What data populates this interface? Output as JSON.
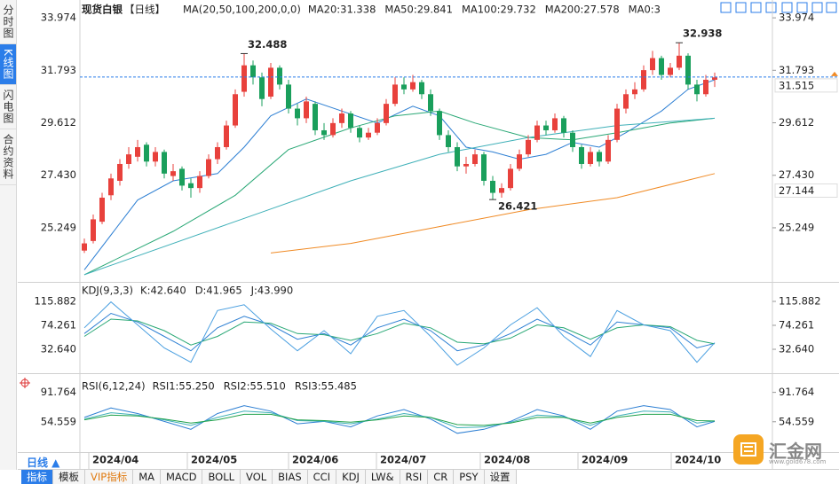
{
  "sidebar": {
    "tabs": [
      "分时图",
      "K线图",
      "闪电图",
      "合约资料"
    ],
    "active": 1
  },
  "chart_data": [
    {
      "type": "candlestick",
      "title": "现货白银",
      "period": "【日线】",
      "ma_label": "MA(20,50,100,200,0,0)",
      "xlim": [
        -0.5,
        77.5
      ],
      "ylim": [
        23.0,
        34.42
      ],
      "yticks": [
        33.974,
        31.793,
        29.612,
        {
          "value": 27.43,
          "label": "27.430"
        },
        25.249
      ],
      "up_color": "#e8413c",
      "down_color": "#1a9f5c",
      "candles": [
        [
          24.3,
          24.8,
          24.2,
          24.6
        ],
        [
          24.7,
          25.8,
          24.6,
          25.6
        ],
        [
          25.5,
          26.7,
          25.4,
          26.5
        ],
        [
          26.6,
          27.5,
          26.4,
          27.3
        ],
        [
          27.2,
          28.1,
          27.0,
          27.9
        ],
        [
          27.9,
          28.6,
          27.7,
          28.3
        ],
        [
          28.2,
          28.9,
          28.0,
          28.6
        ],
        [
          28.7,
          28.8,
          27.8,
          28.0
        ],
        [
          28.0,
          28.6,
          27.8,
          28.4
        ],
        [
          28.4,
          28.5,
          27.3,
          27.5
        ],
        [
          27.4,
          27.9,
          27.2,
          27.6
        ],
        [
          27.7,
          27.8,
          26.8,
          27.0
        ],
        [
          27.1,
          27.3,
          26.5,
          26.9
        ],
        [
          26.9,
          27.6,
          26.7,
          27.4
        ],
        [
          27.4,
          28.3,
          27.3,
          28.1
        ],
        [
          28.1,
          28.8,
          27.9,
          28.6
        ],
        [
          28.6,
          29.7,
          28.5,
          29.5
        ],
        [
          29.5,
          31.0,
          29.4,
          30.8
        ],
        [
          30.9,
          32.488,
          30.7,
          32.0
        ],
        [
          32.0,
          32.2,
          31.2,
          31.5
        ],
        [
          31.5,
          31.7,
          30.3,
          30.6
        ],
        [
          30.7,
          32.1,
          30.6,
          31.9
        ],
        [
          31.9,
          32.0,
          31.0,
          31.2
        ],
        [
          31.2,
          31.4,
          30.0,
          30.2
        ],
        [
          30.2,
          30.4,
          29.5,
          29.8
        ],
        [
          29.8,
          30.7,
          29.6,
          30.5
        ],
        [
          30.4,
          30.5,
          29.1,
          29.3
        ],
        [
          29.3,
          29.6,
          28.9,
          29.1
        ],
        [
          29.1,
          29.8,
          29.0,
          29.6
        ],
        [
          29.6,
          30.2,
          29.4,
          30.0
        ],
        [
          30.0,
          30.1,
          29.2,
          29.4
        ],
        [
          29.4,
          29.5,
          28.8,
          29.0
        ],
        [
          29.0,
          29.4,
          28.9,
          29.2
        ],
        [
          29.2,
          29.8,
          29.1,
          29.6
        ],
        [
          29.6,
          30.6,
          29.5,
          30.4
        ],
        [
          30.4,
          31.5,
          30.3,
          31.2
        ],
        [
          31.2,
          31.5,
          30.8,
          31.0
        ],
        [
          31.0,
          31.6,
          30.9,
          31.3
        ],
        [
          31.3,
          31.4,
          30.6,
          30.8
        ],
        [
          30.8,
          31.0,
          29.9,
          30.1
        ],
        [
          30.1,
          30.2,
          28.9,
          29.1
        ],
        [
          29.1,
          29.3,
          28.4,
          28.6
        ],
        [
          28.6,
          28.8,
          27.6,
          27.8
        ],
        [
          27.8,
          28.2,
          27.5,
          27.9
        ],
        [
          27.9,
          28.5,
          27.8,
          28.3
        ],
        [
          28.3,
          28.4,
          27.0,
          27.2
        ],
        [
          27.2,
          27.4,
          26.421,
          26.7
        ],
        [
          26.7,
          27.1,
          26.5,
          26.9
        ],
        [
          26.9,
          27.9,
          26.8,
          27.7
        ],
        [
          27.7,
          28.5,
          27.6,
          28.3
        ],
        [
          28.3,
          29.1,
          28.2,
          28.9
        ],
        [
          28.9,
          29.7,
          28.8,
          29.5
        ],
        [
          29.5,
          29.7,
          29.1,
          29.3
        ],
        [
          29.3,
          30.0,
          29.2,
          29.8
        ],
        [
          29.8,
          29.9,
          29.0,
          29.2
        ],
        [
          29.2,
          29.3,
          28.4,
          28.6
        ],
        [
          28.6,
          28.7,
          27.7,
          27.9
        ],
        [
          27.9,
          28.6,
          27.8,
          28.4
        ],
        [
          28.4,
          28.5,
          27.8,
          28.0
        ],
        [
          28.0,
          29.1,
          27.9,
          28.9
        ],
        [
          28.9,
          30.4,
          28.8,
          30.2
        ],
        [
          30.2,
          31.0,
          30.0,
          30.8
        ],
        [
          30.8,
          31.3,
          30.6,
          31.0
        ],
        [
          31.0,
          32.0,
          30.9,
          31.8
        ],
        [
          31.8,
          32.6,
          31.6,
          32.3
        ],
        [
          32.3,
          32.4,
          31.4,
          31.6
        ],
        [
          31.6,
          32.1,
          31.5,
          31.9
        ],
        [
          31.9,
          32.938,
          31.8,
          32.4
        ],
        [
          32.4,
          32.5,
          31.0,
          31.2
        ],
        [
          31.2,
          31.4,
          30.5,
          30.8
        ],
        [
          30.8,
          31.6,
          30.7,
          31.4
        ],
        [
          31.4,
          31.7,
          31.1,
          31.5
        ]
      ],
      "series": [
        {
          "name": "MA20:31.338",
          "color": "#2d7fd3",
          "x": [
            0,
            6,
            10,
            15,
            18,
            21,
            25,
            29,
            33,
            37,
            40,
            43,
            46,
            49,
            52,
            55,
            58,
            61,
            65,
            68,
            71
          ],
          "values": [
            23.5,
            26.4,
            27.2,
            27.5,
            28.6,
            29.9,
            30.6,
            30.1,
            29.6,
            30.3,
            29.9,
            28.6,
            28.4,
            28.1,
            28.3,
            28.8,
            28.6,
            29.2,
            30.1,
            31.0,
            31.4
          ]
        },
        {
          "name": "MA50:29.841",
          "color": "#2aa876",
          "x": [
            0,
            10,
            17,
            23,
            30,
            35,
            40,
            44,
            50,
            55,
            60,
            66,
            71
          ],
          "values": [
            23.3,
            25.1,
            26.6,
            28.5,
            29.4,
            29.9,
            30.1,
            29.6,
            29.0,
            28.9,
            29.2,
            29.6,
            29.8
          ]
        },
        {
          "name": "MA100:29.732",
          "color": "#3fb0b8",
          "x": [
            0,
            20,
            30,
            40,
            50,
            60,
            71
          ],
          "values": [
            23.3,
            25.9,
            27.2,
            28.3,
            29.0,
            29.5,
            29.8
          ]
        },
        {
          "name": "MA200:27.578",
          "color": "#f08a24",
          "x": [
            21,
            30,
            40,
            50,
            60,
            71
          ],
          "values": [
            24.2,
            24.6,
            25.3,
            26.0,
            26.5,
            27.5
          ]
        }
      ],
      "legend_extra": {
        "name": "MA0:3",
        "color": "#e07ad8"
      },
      "annotations": [
        {
          "index": 18,
          "value": 32.488,
          "color": "#e8413c"
        },
        {
          "index": 67,
          "value": 32.938,
          "color": "#e8413c"
        },
        {
          "index": 46,
          "value": 26.421,
          "color": "#2aa876"
        }
      ],
      "price_tags": [
        {
          "value": 31.515,
          "color": "#2b7de9",
          "dashed": true
        },
        {
          "value": 27.144,
          "color": "#f08a24",
          "dashed": false
        }
      ]
    },
    {
      "type": "line",
      "title": "KDJ(9,3,3)",
      "xlim": [
        -0.5,
        77.5
      ],
      "ylim": [
        -7.4,
        143.6
      ],
      "yticks": [
        115.882,
        74.261,
        {
          "value": 32.64,
          "label": "32.640"
        }
      ],
      "x": [
        0,
        3,
        6,
        9,
        12,
        15,
        18,
        21,
        24,
        27,
        30,
        33,
        36,
        39,
        42,
        45,
        48,
        51,
        54,
        57,
        60,
        63,
        66,
        69,
        71
      ],
      "series": [
        {
          "name": "K:42.640",
          "color": "#2d7fd3",
          "values": [
            60,
            95,
            80,
            55,
            30,
            70,
            90,
            75,
            50,
            60,
            40,
            70,
            85,
            65,
            30,
            40,
            60,
            85,
            65,
            40,
            80,
            75,
            70,
            35,
            43
          ]
        },
        {
          "name": "D:41.965",
          "color": "#2aa876",
          "values": [
            55,
            85,
            82,
            65,
            40,
            55,
            80,
            78,
            60,
            58,
            48,
            60,
            78,
            70,
            45,
            42,
            52,
            75,
            70,
            50,
            70,
            75,
            72,
            48,
            42
          ]
        },
        {
          "name": "J:43.990",
          "color": "#4a9fe0",
          "values": [
            70,
            115,
            75,
            35,
            10,
            100,
            110,
            68,
            30,
            65,
            25,
            90,
            100,
            55,
            5,
            35,
            75,
            105,
            55,
            20,
            100,
            75,
            65,
            10,
            44
          ]
        }
      ]
    },
    {
      "type": "line",
      "title": "RSI(6,12,24)",
      "xlim": [
        -0.5,
        77.5
      ],
      "ylim": [
        16.2,
        111.5
      ],
      "yticks": [
        91.764,
        54.559
      ],
      "x": [
        0,
        3,
        6,
        9,
        12,
        15,
        18,
        21,
        24,
        27,
        30,
        33,
        36,
        39,
        42,
        45,
        48,
        51,
        54,
        57,
        60,
        63,
        66,
        69,
        71
      ],
      "series": [
        {
          "name": "RSI1:55.250",
          "color": "#2d7fd3",
          "values": [
            60,
            72,
            65,
            55,
            45,
            65,
            75,
            68,
            52,
            55,
            48,
            62,
            70,
            58,
            40,
            45,
            55,
            70,
            62,
            45,
            68,
            75,
            70,
            48,
            55
          ]
        },
        {
          "name": "RSI2:55.510",
          "color": "#3fb0b8",
          "values": [
            58,
            66,
            63,
            57,
            50,
            60,
            68,
            66,
            56,
            55,
            52,
            58,
            65,
            60,
            47,
            48,
            54,
            63,
            61,
            50,
            62,
            68,
            67,
            53,
            55.5
          ]
        },
        {
          "name": "RSI3:55.485",
          "color": "#1fa14a",
          "values": [
            57,
            63,
            62,
            58,
            53,
            57,
            64,
            64,
            57,
            56,
            54,
            57,
            62,
            60,
            51,
            50,
            53,
            60,
            60,
            53,
            60,
            64,
            64,
            56,
            55.5
          ]
        }
      ],
      "xticks": [
        {
          "value": 0.5,
          "label": "2024/04"
        },
        {
          "value": 11.6,
          "label": "2024/05"
        },
        {
          "value": 23,
          "label": "2024/06"
        },
        {
          "value": 32.9,
          "label": "2024/07"
        },
        {
          "value": 44.6,
          "label": "2024/08"
        },
        {
          "value": 55.6,
          "label": "2024/09"
        },
        {
          "value": 66.1,
          "label": "2024/10"
        }
      ]
    }
  ],
  "period_selector": "日线 ▲",
  "toolbar": {
    "items": [
      "指标",
      "模板",
      "VIP指标",
      "MA",
      "MACD",
      "BOLL",
      "VOL",
      "BIAS",
      "CCI",
      "KDJ",
      "LW&",
      "RSI",
      "CR",
      "PSY",
      "设置"
    ],
    "active": 0,
    "highlight": 2
  },
  "logo": {
    "name": "汇金网",
    "url": "www.gold678.com"
  }
}
